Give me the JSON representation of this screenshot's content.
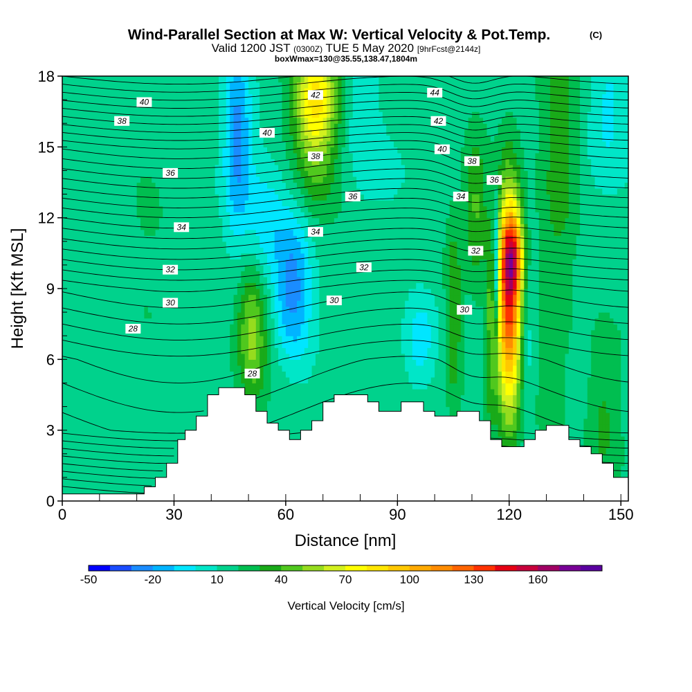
{
  "chart_data": {
    "type": "heatmap",
    "title": "Wind-Parallel Section at Max W: Vertical Velocity & Pot.Temp.",
    "copyright_mark": "(C)",
    "subtitle_main": "Valid 1200 JST",
    "subtitle_utc": "(0300Z)",
    "subtitle_date": "TUE 5 May 2020",
    "subtitle_fcst": "[9hrFcst@2144z]",
    "subtitle2": "boxWmax=130@35.55,138.47,1804m",
    "xlabel": "Distance [nm]",
    "ylabel": "Height [Kft MSL]",
    "xlim": [
      0,
      152
    ],
    "ylim": [
      0,
      18
    ],
    "x_ticks": [
      0,
      30,
      60,
      90,
      120,
      150
    ],
    "y_ticks": [
      0,
      3,
      6,
      9,
      12,
      15,
      18
    ],
    "colorbar": {
      "label": "Vertical Velocity [cm/s]",
      "tick_values": [
        -50,
        -20,
        10,
        40,
        70,
        100,
        130,
        160
      ],
      "levels": [
        -50,
        -40,
        -30,
        -20,
        -10,
        0,
        10,
        20,
        30,
        40,
        50,
        60,
        70,
        80,
        90,
        100,
        110,
        120,
        130,
        140,
        150,
        160,
        170
      ],
      "colors": [
        "#0000ff",
        "#1a4cff",
        "#1a8cff",
        "#00b4ff",
        "#00e6ff",
        "#00e6c8",
        "#00d28c",
        "#00be50",
        "#19aa19",
        "#50c81e",
        "#96dc1e",
        "#d2f01e",
        "#ffff00",
        "#ffe600",
        "#ffc800",
        "#ffaa00",
        "#ff8c00",
        "#ff6400",
        "#ff3200",
        "#e60014",
        "#c8003c",
        "#a00064",
        "#780096",
        "#5a00a0"
      ]
    },
    "terrain_profile": {
      "x": [
        0,
        19,
        22,
        25,
        28,
        31,
        33,
        36,
        39,
        42,
        45,
        49,
        52,
        55,
        58,
        61,
        64,
        67,
        70,
        73,
        76,
        79,
        82,
        85,
        88,
        91,
        94,
        97,
        100,
        103,
        106,
        109,
        112,
        115,
        118,
        121,
        124,
        127,
        130,
        133,
        136,
        139,
        142,
        145,
        148,
        152
      ],
      "height": [
        0.3,
        0.3,
        0.6,
        1.0,
        1.6,
        2.6,
        3.0,
        3.6,
        4.5,
        4.8,
        4.8,
        4.5,
        3.8,
        3.3,
        3.0,
        2.6,
        3.0,
        3.4,
        4.2,
        4.5,
        4.5,
        4.5,
        4.2,
        3.8,
        3.8,
        4.2,
        4.2,
        3.8,
        3.6,
        3.6,
        3.8,
        3.8,
        3.4,
        2.6,
        2.3,
        2.3,
        2.6,
        3.0,
        3.2,
        3.2,
        2.6,
        2.3,
        2.0,
        1.6,
        1.0,
        0.9
      ]
    },
    "theta_contours": [
      {
        "label": "28",
        "label_at": [
          [
            19,
            7.3
          ],
          [
            51,
            5.4
          ]
        ]
      },
      {
        "label": "30",
        "label_at": [
          [
            29,
            8.4
          ],
          [
            73,
            8.5
          ],
          [
            108,
            8.1
          ]
        ]
      },
      {
        "label": "32",
        "label_at": [
          [
            29,
            9.8
          ],
          [
            81,
            9.9
          ],
          [
            111,
            10.6
          ]
        ]
      },
      {
        "label": "34",
        "label_at": [
          [
            32,
            11.6
          ],
          [
            68,
            11.4
          ],
          [
            107,
            12.9
          ]
        ]
      },
      {
        "label": "36",
        "label_at": [
          [
            29,
            13.9
          ],
          [
            78,
            12.9
          ],
          [
            116,
            13.6
          ]
        ]
      },
      {
        "label": "38",
        "label_at": [
          [
            16,
            16.1
          ],
          [
            68,
            14.6
          ],
          [
            110,
            14.4
          ]
        ]
      },
      {
        "label": "40",
        "label_at": [
          [
            22,
            16.9
          ],
          [
            55,
            15.6
          ],
          [
            102,
            14.9
          ]
        ]
      },
      {
        "label": "42",
        "label_at": [
          [
            68,
            17.2
          ],
          [
            101,
            16.1
          ]
        ]
      },
      {
        "label": "44",
        "label_at": [
          [
            100,
            17.3
          ]
        ]
      }
    ],
    "w_features": [
      {
        "x": 120,
        "y": 8.5,
        "w": 120,
        "sx": 2.3,
        "sy": 3.3
      },
      {
        "x": 121,
        "y": 10.5,
        "w": 60,
        "sx": 2.2,
        "sy": 1.2
      },
      {
        "x": 116.5,
        "y": 10.0,
        "w": -60,
        "sx": 0.6,
        "sy": 1.8
      },
      {
        "x": 125,
        "y": 7.5,
        "w": -15,
        "sx": 1.5,
        "sy": 3.0
      },
      {
        "x": 115,
        "y": 7.0,
        "w": 20,
        "sx": 1.0,
        "sy": 3.0
      },
      {
        "x": 51,
        "y": 7.8,
        "w": 35,
        "sx": 3.0,
        "sy": 1.8
      },
      {
        "x": 51,
        "y": 5.8,
        "w": 15,
        "sx": 2.5,
        "sy": 1.5
      },
      {
        "x": 62,
        "y": 9.0,
        "w": -40,
        "sx": 3.5,
        "sy": 2.2
      },
      {
        "x": 55,
        "y": 11.5,
        "w": -20,
        "sx": 4.0,
        "sy": 2.0
      },
      {
        "x": 47,
        "y": 15.5,
        "w": -35,
        "sx": 2.5,
        "sy": 2.8
      },
      {
        "x": 68,
        "y": 17.3,
        "w": 55,
        "sx": 4.0,
        "sy": 1.5
      },
      {
        "x": 68,
        "y": 15.0,
        "w": 30,
        "sx": 4.0,
        "sy": 2.0
      },
      {
        "x": 80,
        "y": 16.5,
        "w": -15,
        "sx": 3.0,
        "sy": 2.5
      },
      {
        "x": 96,
        "y": 6.8,
        "w": -25,
        "sx": 3.0,
        "sy": 1.3
      },
      {
        "x": 105,
        "y": 8.0,
        "w": 25,
        "sx": 1.6,
        "sy": 3.0
      },
      {
        "x": 111,
        "y": 12.5,
        "w": 25,
        "sx": 2.0,
        "sy": 2.0
      },
      {
        "x": 134,
        "y": 15.0,
        "w": 20,
        "sx": 3.5,
        "sy": 4.0
      },
      {
        "x": 147,
        "y": 16.5,
        "w": -20,
        "sx": 4.0,
        "sy": 2.5
      },
      {
        "x": 46,
        "y": 13.5,
        "w": -5,
        "sx": 8.0,
        "sy": 4.0
      },
      {
        "x": 145,
        "y": 3.5,
        "w": 15,
        "sx": 3.0,
        "sy": 2.5
      },
      {
        "x": 131,
        "y": 6.0,
        "w": 10,
        "sx": 3.0,
        "sy": 3.0
      },
      {
        "x": 25,
        "y": 12.5,
        "w": 3,
        "sx": 6.0,
        "sy": 4.0
      },
      {
        "x": 90,
        "y": 13.5,
        "w": -6,
        "sx": 6.0,
        "sy": 3.0
      }
    ]
  }
}
